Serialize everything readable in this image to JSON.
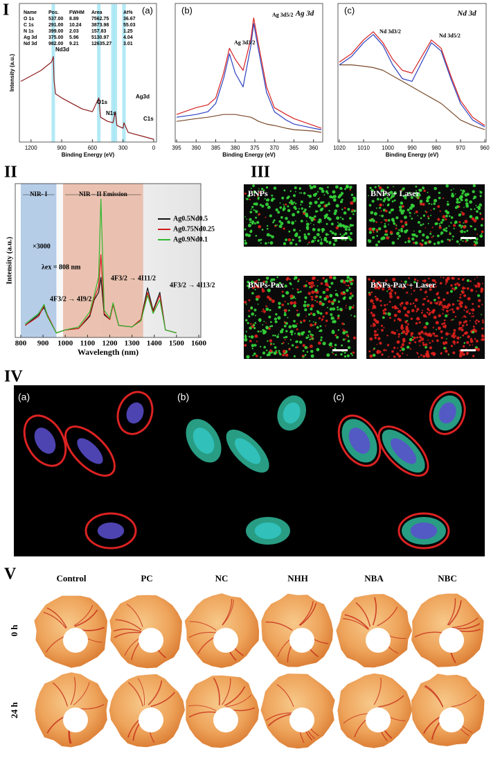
{
  "figure": {
    "section_labels": [
      "I",
      "II",
      "III",
      "IV",
      "V"
    ]
  },
  "chart_data": [
    {
      "type": "line",
      "panel_label": "(a)",
      "xlabel": "Binding Energy (eV)",
      "ylabel": "Intensity (a.u.)",
      "xlim": [
        1300,
        0
      ],
      "ylim": [
        0,
        100
      ],
      "xticks": [
        1200,
        900,
        600,
        300,
        0
      ],
      "table": {
        "header": [
          "Name",
          "Pos.",
          "FWHM",
          "Area",
          "At%"
        ],
        "rows": [
          [
            "O 1s",
            "537.00",
            "8.89",
            "7562.75",
            "36.67"
          ],
          [
            "C 1s",
            "291.00",
            "10.24",
            "3873.98",
            "55.03"
          ],
          [
            "N 1s",
            "399.00",
            "2.03",
            "157.83",
            "1.25"
          ],
          [
            "Ag 3d",
            "375.00",
            "5.96",
            "5130.97",
            "4.04"
          ],
          [
            "Nd 3d",
            "982.00",
            "9.21",
            "12635.27",
            "3.01"
          ]
        ]
      },
      "annotations": [
        "Nd3d",
        "O1s",
        "N1s",
        "Ag3d",
        "C1s"
      ],
      "x": [
        1300,
        1250,
        1200,
        1150,
        1100,
        1050,
        1000,
        990,
        982,
        975,
        960,
        900,
        800,
        700,
        600,
        537,
        520,
        450,
        399,
        375,
        360,
        300,
        291,
        250,
        100,
        0
      ],
      "series": [
        {
          "color": "#8b1a1a",
          "values": [
            44,
            46,
            48,
            50,
            52,
            55,
            58,
            60,
            62,
            45,
            35,
            32,
            28,
            24,
            22,
            32,
            18,
            15,
            14,
            22,
            12,
            10,
            14,
            7,
            4,
            2
          ]
        }
      ]
    },
    {
      "type": "line",
      "panel_label": "(b)",
      "title": "Ag 3d",
      "xlabel": "Binding Energy (eV)",
      "xlim": [
        395,
        358
      ],
      "ylim": [
        0,
        100
      ],
      "xticks": [
        395,
        390,
        385,
        380,
        375,
        370,
        365,
        360
      ],
      "annotations": [
        "Ag 3d3/2",
        "Ag 3d5/2"
      ],
      "x": [
        395,
        390,
        387,
        385,
        383,
        381.5,
        380,
        378,
        376,
        375.3,
        374,
        372,
        370,
        367,
        365,
        360,
        358
      ],
      "series": [
        {
          "color": "#7a4a2a",
          "values": [
            15,
            17,
            18,
            19,
            20,
            20,
            20,
            19,
            18,
            17,
            15,
            13,
            12,
            10,
            9,
            8,
            7
          ]
        },
        {
          "color": "#2a3fbf",
          "values": [
            18,
            20,
            22,
            28,
            46,
            64,
            50,
            40,
            70,
            86,
            66,
            36,
            22,
            16,
            13,
            10,
            9
          ]
        },
        {
          "color": "#d62020",
          "values": [
            20,
            25,
            27,
            32,
            50,
            68,
            60,
            52,
            75,
            90,
            70,
            40,
            25,
            20,
            17,
            12,
            10
          ]
        }
      ]
    },
    {
      "type": "line",
      "panel_label": "(c)",
      "title": "Nd 3d",
      "xlabel": "Binding Energy (eV)",
      "xlim": [
        1020,
        960
      ],
      "ylim": [
        0,
        100
      ],
      "xticks": [
        1020,
        1010,
        1000,
        990,
        980,
        970,
        960
      ],
      "annotations": [
        "Nd 3d3/2",
        "Nd 3d5/2"
      ],
      "x": [
        1020,
        1015,
        1010,
        1006,
        1002,
        998,
        994,
        990,
        986,
        982,
        978,
        974,
        970,
        965,
        960
      ],
      "series": [
        {
          "color": "#7a4a2a",
          "values": [
            56,
            56,
            55,
            54,
            52,
            48,
            44,
            40,
            36,
            32,
            28,
            22,
            16,
            12,
            9
          ]
        },
        {
          "color": "#2a3fbf",
          "values": [
            56,
            62,
            72,
            78,
            70,
            56,
            46,
            44,
            58,
            72,
            66,
            46,
            28,
            16,
            11
          ]
        },
        {
          "color": "#d62020",
          "values": [
            58,
            64,
            74,
            80,
            72,
            60,
            52,
            50,
            62,
            74,
            68,
            48,
            30,
            18,
            12
          ]
        }
      ]
    },
    {
      "type": "line",
      "xlabel": "Wavelength (nm)",
      "ylabel": "Intensity (a.u.)",
      "xlim": [
        800,
        1600
      ],
      "ylim": [
        0,
        100
      ],
      "xticks": [
        800,
        900,
        1000,
        1100,
        1200,
        1300,
        1400,
        1500,
        1600
      ],
      "regions": [
        {
          "label": "NIR- I",
          "range": [
            800,
            960
          ],
          "color": "#a9c4e4"
        },
        {
          "label": "NIR – II Emission",
          "range": [
            990,
            1350
          ],
          "color": "#e9b8a4"
        }
      ],
      "annotations": [
        "×3000",
        "λex = 808 nm",
        "4F3/2 → 4I11/2",
        "4F3/2 → 4I9/2",
        "4F3/2 → 4I13/2"
      ],
      "x": [
        820,
        880,
        905,
        920,
        960,
        1000,
        1060,
        1110,
        1130,
        1150,
        1160,
        1175,
        1200,
        1215,
        1240,
        1300,
        1340,
        1370,
        1395,
        1425,
        1450,
        1500
      ],
      "series": [
        {
          "name": "Ag0.5Nd0.5",
          "color": "#111111",
          "values": [
            8,
            15,
            20,
            14,
            3,
            5,
            6,
            14,
            25,
            30,
            40,
            15,
            12,
            22,
            8,
            7,
            12,
            33,
            18,
            30,
            5,
            3
          ]
        },
        {
          "name": "Ag0.75Nd0.25",
          "color": "#d11a1a",
          "values": [
            8,
            14,
            21,
            15,
            3,
            5,
            6,
            15,
            26,
            34,
            55,
            16,
            12,
            22,
            8,
            7,
            12,
            30,
            17,
            28,
            5,
            3
          ]
        },
        {
          "name": "Ag0.9Nd0.1",
          "color": "#2cb82c",
          "values": [
            9,
            16,
            22,
            14,
            3,
            5,
            7,
            17,
            28,
            40,
            92,
            18,
            13,
            23,
            8,
            7,
            11,
            28,
            16,
            25,
            5,
            3
          ]
        }
      ]
    }
  ],
  "fluorescence": {
    "labels": [
      "BNPs",
      "BNPs + Laser",
      "BNPs-Pax",
      "BNPs-Pax + Laser"
    ]
  },
  "cells": {
    "labels": [
      "(a)",
      "(b)",
      "(c)"
    ]
  },
  "eggs": {
    "columns": [
      "Control",
      "PC",
      "NC",
      "NHH",
      "NBA",
      "NBC"
    ],
    "rows": [
      "0 h",
      "24 h"
    ]
  }
}
